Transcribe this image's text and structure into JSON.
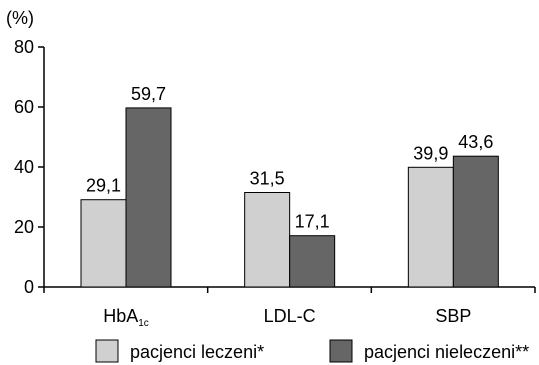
{
  "chart_data": {
    "type": "bar",
    "unit_label": "(%)",
    "categories": [
      {
        "main": "HbA",
        "sub": "1c"
      },
      {
        "main": "LDL-C",
        "sub": ""
      },
      {
        "main": "SBP",
        "sub": ""
      }
    ],
    "series": [
      {
        "name": "pacjenci leczeni*",
        "values": [
          29.1,
          31.5,
          39.9
        ],
        "labels": [
          "29,1",
          "31,5",
          "39,9"
        ],
        "color": "#d0d0d0"
      },
      {
        "name": "pacjenci nieleczeni**",
        "values": [
          59.7,
          17.1,
          43.6
        ],
        "labels": [
          "59,7",
          "17,1",
          "43,6"
        ],
        "color": "#666666"
      }
    ],
    "ylim": [
      0,
      80
    ],
    "yticks": [
      0,
      20,
      40,
      60,
      80
    ],
    "grid": false,
    "legend_position": "bottom",
    "xlabel": "",
    "ylabel": ""
  }
}
